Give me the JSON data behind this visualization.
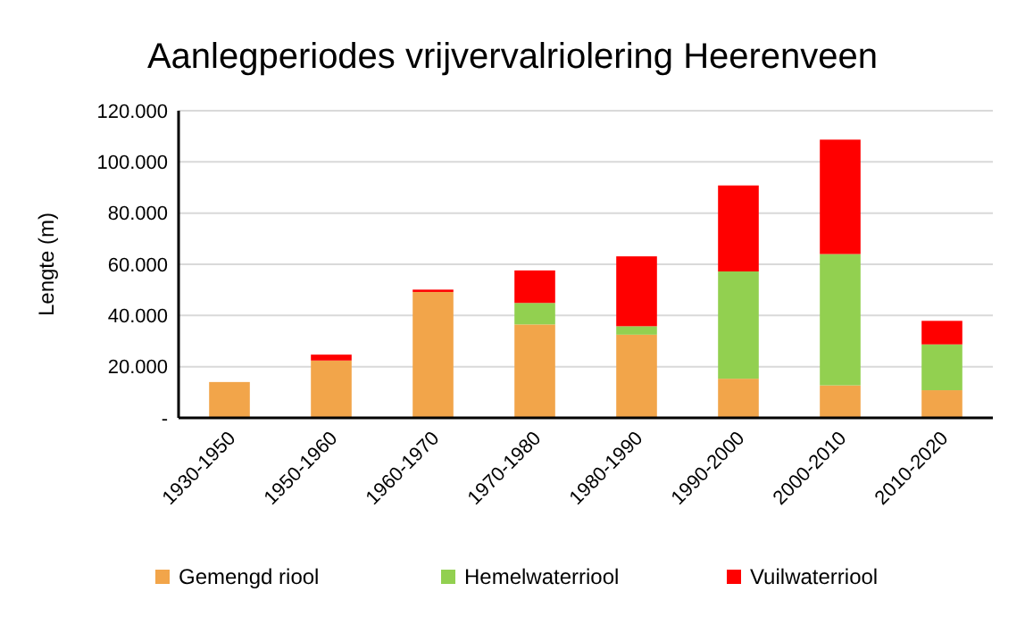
{
  "chart_data": {
    "type": "bar",
    "stacked": true,
    "title": "Aanlegperiodes vrijvervalriolering Heerenveen",
    "ylabel": "Lengte (m)",
    "categories": [
      "1930-1950",
      "1950-1960",
      "1960-1970",
      "1970-1980",
      "1980-1990",
      "1990-2000",
      "2000-2010",
      "2010-2020"
    ],
    "series": [
      {
        "name": "Gemengd riool",
        "color": "#f2a54a",
        "values": [
          14000,
          22400,
          49200,
          36500,
          32500,
          15300,
          12700,
          10800
        ]
      },
      {
        "name": "Hemelwaterriool",
        "color": "#92d050",
        "values": [
          0,
          0,
          0,
          8400,
          3300,
          41900,
          51300,
          17900
        ]
      },
      {
        "name": "Vuilwaterriool",
        "color": "#ff0000",
        "values": [
          0,
          2300,
          900,
          12700,
          27300,
          33600,
          44700,
          9200
        ]
      }
    ],
    "ylim": [
      0,
      120000
    ],
    "yticks": [
      {
        "value": 0,
        "label": "-"
      },
      {
        "value": 20000,
        "label": "20.000"
      },
      {
        "value": 40000,
        "label": "40.000"
      },
      {
        "value": 60000,
        "label": "60.000"
      },
      {
        "value": 80000,
        "label": "80.000"
      },
      {
        "value": 100000,
        "label": "100.000"
      },
      {
        "value": 120000,
        "label": "120.000"
      }
    ],
    "grid": "y",
    "legend": "bottom"
  }
}
